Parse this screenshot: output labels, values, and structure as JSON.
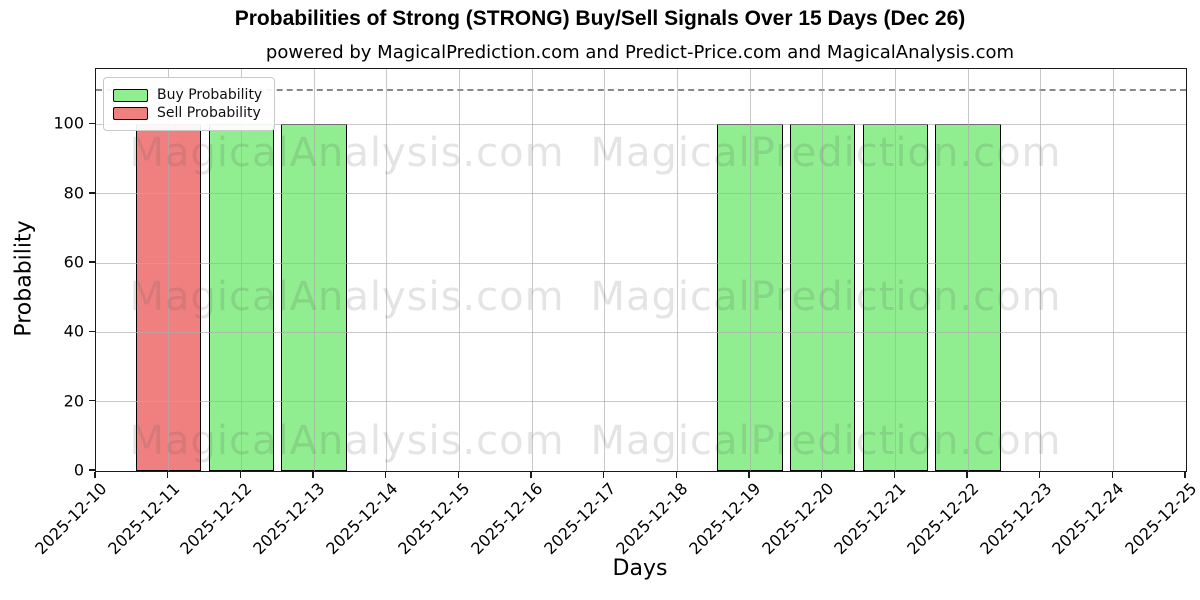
{
  "title": "Probabilities of Strong (STRONG) Buy/Sell Signals Over 15 Days (Dec 26)",
  "subtitle": "powered by MagicalPrediction.com and Predict-Price.com and MagicalAnalysis.com",
  "watermark": {
    "left_text": "MagicalAnalysis.com",
    "right_text": "MagicalPrediction.com"
  },
  "legend": {
    "items": [
      {
        "label": "Buy Probability",
        "color": "#90EE90"
      },
      {
        "label": "Sell Probability",
        "color": "#F08080"
      }
    ]
  },
  "chart_data": {
    "type": "bar",
    "title": "Probabilities of Strong (STRONG) Buy/Sell Signals Over 15 Days (Dec 26)",
    "xlabel": "Days",
    "ylabel": "Probability",
    "categories": [
      "2025-12-10",
      "2025-12-11",
      "2025-12-12",
      "2025-12-13",
      "2025-12-14",
      "2025-12-15",
      "2025-12-16",
      "2025-12-17",
      "2025-12-18",
      "2025-12-19",
      "2025-12-20",
      "2025-12-21",
      "2025-12-22",
      "2025-12-23",
      "2025-12-24",
      "2025-12-25"
    ],
    "series": [
      {
        "name": "Buy Probability",
        "color": "#90EE90",
        "values": [
          0,
          0,
          100,
          100,
          0,
          0,
          0,
          0,
          0,
          100,
          100,
          100,
          100,
          0,
          0,
          0
        ]
      },
      {
        "name": "Sell Probability",
        "color": "#F08080",
        "values": [
          0,
          100,
          0,
          0,
          0,
          0,
          0,
          0,
          0,
          0,
          0,
          0,
          0,
          0,
          0,
          0
        ]
      }
    ],
    "ylim": [
      0,
      116
    ],
    "yticks": [
      0,
      20,
      40,
      60,
      80,
      100
    ],
    "dashed_line_y": 110,
    "bar_width_ratio": 0.9,
    "grid": true,
    "legend_position": "upper left",
    "colors": {
      "bar_edge": "#000000",
      "grid": "#aaaaaa",
      "dashed_line": "#888888",
      "background": "#ffffff"
    }
  }
}
